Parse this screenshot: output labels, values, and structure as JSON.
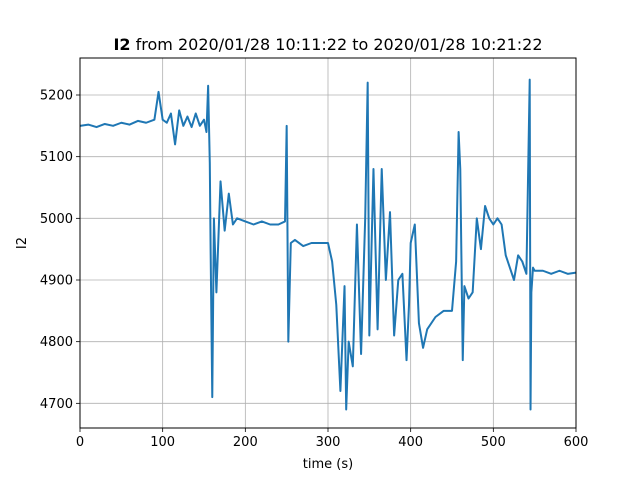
{
  "chart_data": {
    "type": "line",
    "title_var": "I2",
    "title_rest": " from 2020/01/28 10:11:22 to 2020/01/28 10:21:22",
    "xlabel": "time (s)",
    "ylabel": "I2",
    "xlim": [
      0,
      600
    ],
    "ylim": [
      4660,
      4260
    ],
    "grid": true,
    "line_color": "#1f77b4",
    "x_ticks": [
      0,
      100,
      200,
      300,
      400,
      500,
      600
    ],
    "x_tick_labels": [
      "0",
      "100",
      "200",
      "300",
      "400",
      "500",
      "600"
    ],
    "y_ticks": [
      4700,
      4800,
      4900,
      5000,
      5100,
      5200
    ],
    "y_tick_labels": [
      "4700",
      "4800",
      "4900",
      "5000",
      "5100",
      "5200"
    ],
    "series": [
      {
        "x": [
          0,
          10,
          20,
          30,
          40,
          50,
          60,
          70,
          80,
          90,
          95,
          100,
          105,
          110,
          115,
          120,
          125,
          130,
          135,
          140,
          145,
          150,
          153,
          155,
          157,
          158,
          160,
          162,
          165,
          170,
          175,
          180,
          185,
          190,
          200,
          210,
          220,
          230,
          240,
          248,
          250,
          252,
          255,
          260,
          270,
          280,
          290,
          300,
          305,
          310,
          315,
          320,
          322,
          325,
          330,
          335,
          340,
          345,
          348,
          350,
          355,
          360,
          365,
          370,
          375,
          380,
          385,
          390,
          395,
          398,
          400,
          405,
          410,
          415,
          420,
          430,
          440,
          450,
          455,
          458,
          460,
          463,
          465,
          470,
          475,
          480,
          485,
          490,
          495,
          500,
          505,
          510,
          515,
          520,
          525,
          530,
          535,
          540,
          544,
          545,
          546,
          548,
          550,
          560,
          570,
          580,
          590,
          600
        ],
        "y": [
          5150,
          5152,
          5148,
          5153,
          5150,
          5155,
          5152,
          5158,
          5155,
          5160,
          5205,
          5160,
          5155,
          5170,
          5120,
          5175,
          5150,
          5165,
          5148,
          5170,
          5150,
          5160,
          5140,
          5215,
          5090,
          4950,
          4710,
          5000,
          4880,
          5060,
          4980,
          5040,
          4990,
          5000,
          4995,
          4990,
          4995,
          4990,
          4990,
          4995,
          5150,
          4800,
          4960,
          4965,
          4955,
          4960,
          4960,
          4960,
          4930,
          4860,
          4720,
          4890,
          4690,
          4800,
          4760,
          4990,
          4780,
          5000,
          5220,
          4810,
          5080,
          4820,
          5080,
          4900,
          5010,
          4810,
          4900,
          4910,
          4770,
          4860,
          4960,
          4990,
          4830,
          4790,
          4820,
          4840,
          4850,
          4850,
          4930,
          5140,
          5080,
          4770,
          4890,
          4870,
          4880,
          5000,
          4950,
          5020,
          5000,
          4990,
          5000,
          4990,
          4940,
          4920,
          4900,
          4940,
          4930,
          4910,
          5225,
          4690,
          4880,
          4920,
          4915,
          4915,
          4910,
          4915,
          4910,
          4912
        ]
      }
    ]
  }
}
